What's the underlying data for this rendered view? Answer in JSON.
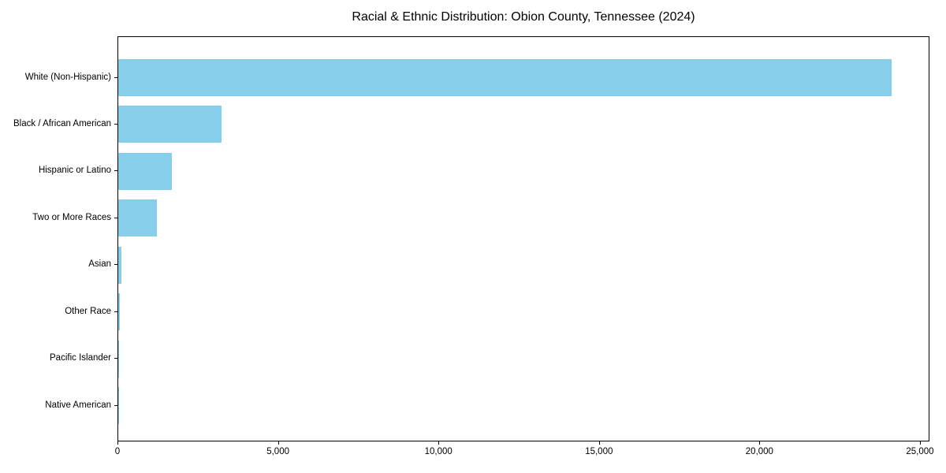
{
  "chart_data": {
    "type": "bar",
    "orientation": "horizontal",
    "title": "Racial & Ethnic Distribution: Obion County, Tennessee (2024)",
    "categories": [
      "White (Non-Hispanic)",
      "Black / African American",
      "Hispanic or Latino",
      "Two or More Races",
      "Asian",
      "Other Race",
      "Pacific Islander",
      "Native American"
    ],
    "values": [
      24090,
      3215,
      1670,
      1200,
      105,
      55,
      15,
      5
    ],
    "bar_color": "#87CEEB",
    "background_color": "#ffffff",
    "axis_color": "#000000",
    "text_color": "#000000",
    "xlabel": "",
    "ylabel": "",
    "xlim": [
      0,
      25295
    ],
    "xticks": [
      0,
      5000,
      10000,
      15000,
      20000,
      25000
    ],
    "xtick_labels": [
      "0",
      "5,000",
      "10,000",
      "15,000",
      "20,000",
      "25,000"
    ],
    "grid": false,
    "legend": null
  }
}
